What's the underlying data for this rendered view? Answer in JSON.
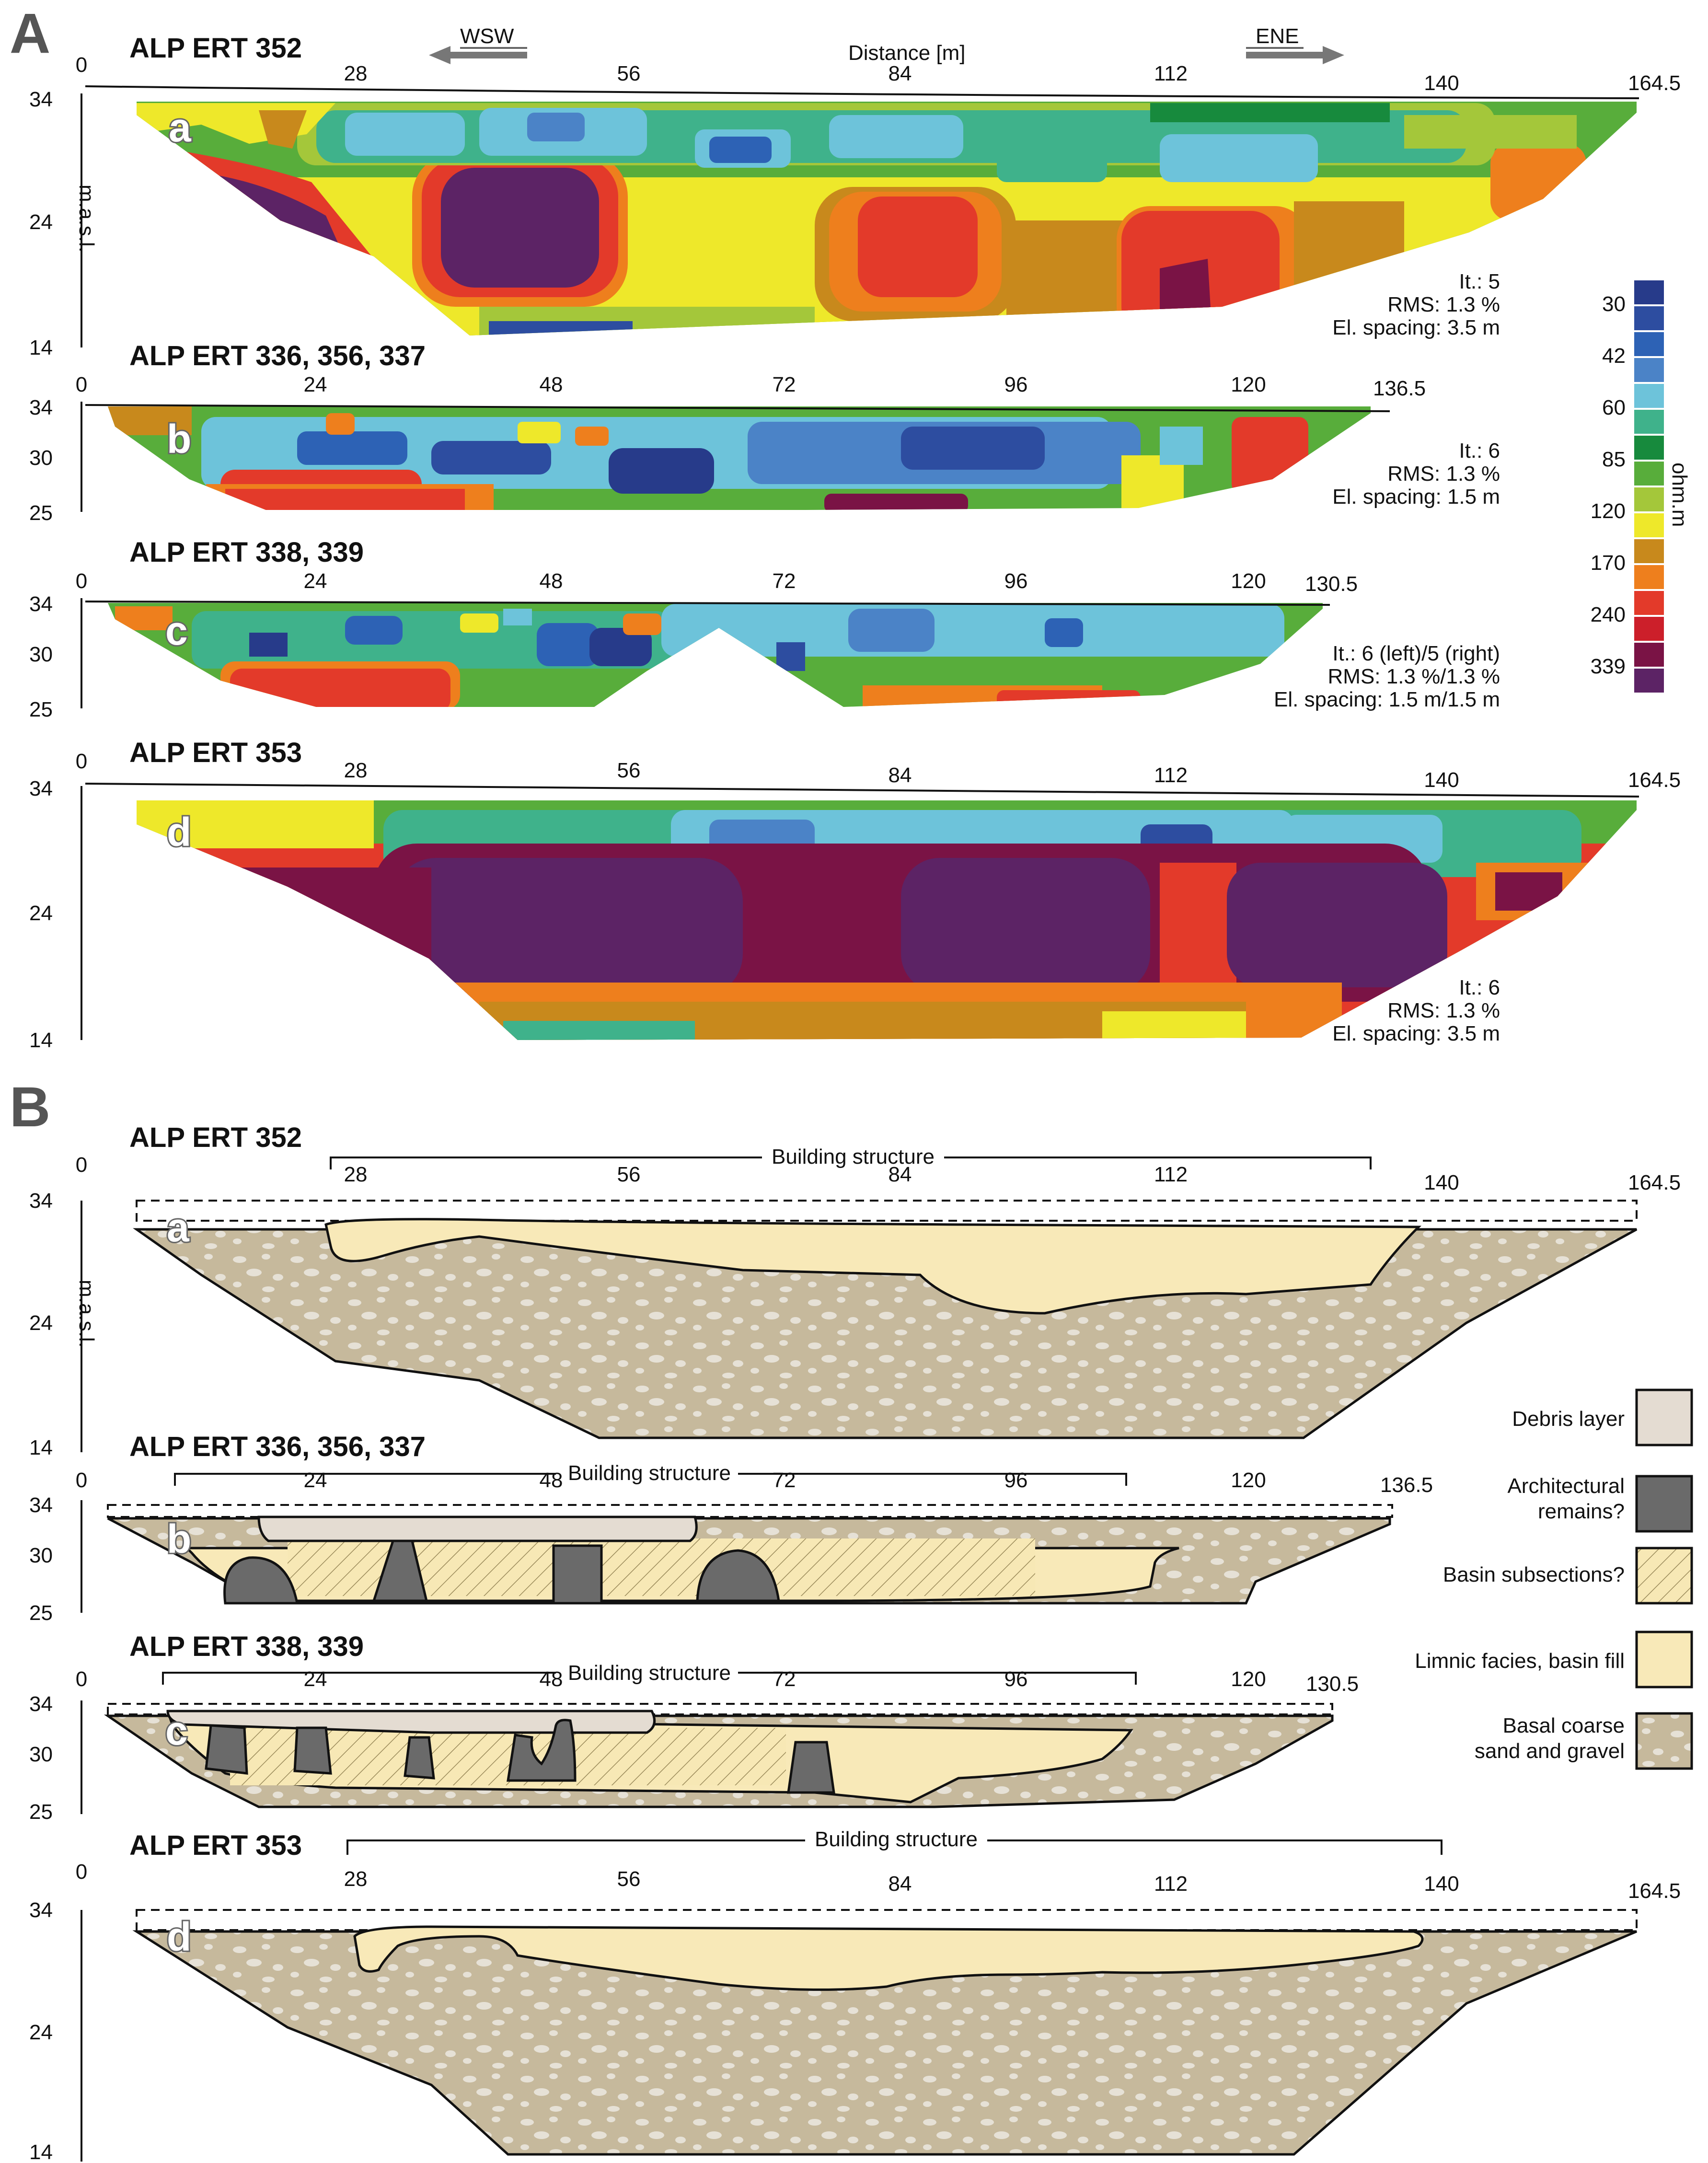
{
  "panels": {
    "A": "A",
    "B": "B"
  },
  "direction": {
    "left": "WSW",
    "right": "ENE"
  },
  "distance_label": "Distance [m]",
  "elevation_label": "m.a.s.l.",
  "building_label": "Building structure",
  "colorbar": {
    "unit": "ohm.m",
    "ticks": [
      "30",
      "42",
      "60",
      "85",
      "120",
      "170",
      "240",
      "339"
    ],
    "colors": [
      "#273b8a",
      "#2d4da0",
      "#2d62b5",
      "#4b83c7",
      "#6dc3da",
      "#3fb28b",
      "#178a3d",
      "#58ad3b",
      "#a4c73a",
      "#eee82a",
      "#c8891c",
      "#ee7f1d",
      "#e33a2a",
      "#cc1f2a",
      "#7a1345",
      "#5c2365"
    ]
  },
  "legend": [
    {
      "label": "Debris layer",
      "color": "#e4dcd2"
    },
    {
      "label": "Architectural remains?",
      "color": "#6a6a6a"
    },
    {
      "label": "Basin subsections?",
      "color": "#f7e8b5"
    },
    {
      "label": "Limnic facies, basin fill",
      "color": "#f8e9b8"
    },
    {
      "label": "Basal coarse sand and gravel",
      "color": "#c6b99c"
    }
  ],
  "ert": [
    {
      "id": "a",
      "title": "ALP ERT 352",
      "x_ticks": [
        "0",
        "28",
        "56",
        "84",
        "112",
        "140",
        "164.5"
      ],
      "y_ticks": [
        "34",
        "24",
        "14"
      ],
      "stats": [
        "It.: 5",
        "RMS: 1.3 %",
        "El. spacing: 3.5 m"
      ]
    },
    {
      "id": "b",
      "title": "ALP ERT 336, 356, 337",
      "x_ticks": [
        "0",
        "24",
        "48",
        "72",
        "96",
        "120",
        "136.5"
      ],
      "y_ticks": [
        "34",
        "30",
        "25"
      ],
      "stats": [
        "It.: 6",
        "RMS: 1.3 %",
        "El. spacing: 1.5 m"
      ]
    },
    {
      "id": "c",
      "title": "ALP ERT 338, 339",
      "x_ticks": [
        "0",
        "24",
        "48",
        "72",
        "96",
        "120",
        "130.5"
      ],
      "y_ticks": [
        "34",
        "30",
        "25"
      ],
      "stats": [
        "It.: 6 (left)/5 (right)",
        "RMS: 1.3 %/1.3 %",
        "El. spacing: 1.5 m/1.5 m"
      ]
    },
    {
      "id": "d",
      "title": "ALP ERT 353",
      "x_ticks": [
        "0",
        "28",
        "56",
        "84",
        "112",
        "140",
        "164.5"
      ],
      "y_ticks": [
        "34",
        "24",
        "14"
      ],
      "stats": [
        "It.: 6",
        "RMS: 1.3 %",
        "El. spacing: 3.5 m"
      ]
    }
  ],
  "interp": [
    {
      "id": "a",
      "title": "ALP ERT 352",
      "x_ticks": [
        "0",
        "28",
        "56",
        "84",
        "112",
        "140",
        "164.5"
      ],
      "y_ticks": [
        "34",
        "24",
        "14"
      ]
    },
    {
      "id": "b",
      "title": "ALP ERT 336, 356, 337",
      "x_ticks": [
        "0",
        "24",
        "48",
        "72",
        "96",
        "120",
        "136.5"
      ],
      "y_ticks": [
        "34",
        "30",
        "25"
      ]
    },
    {
      "id": "c",
      "title": "ALP ERT 338, 339",
      "x_ticks": [
        "0",
        "24",
        "48",
        "72",
        "96",
        "120",
        "130.5"
      ],
      "y_ticks": [
        "34",
        "30",
        "25"
      ]
    },
    {
      "id": "d",
      "title": "ALP ERT 353",
      "x_ticks": [
        "0",
        "28",
        "56",
        "84",
        "112",
        "140",
        "164.5"
      ],
      "y_ticks": [
        "34",
        "24",
        "14"
      ]
    }
  ]
}
